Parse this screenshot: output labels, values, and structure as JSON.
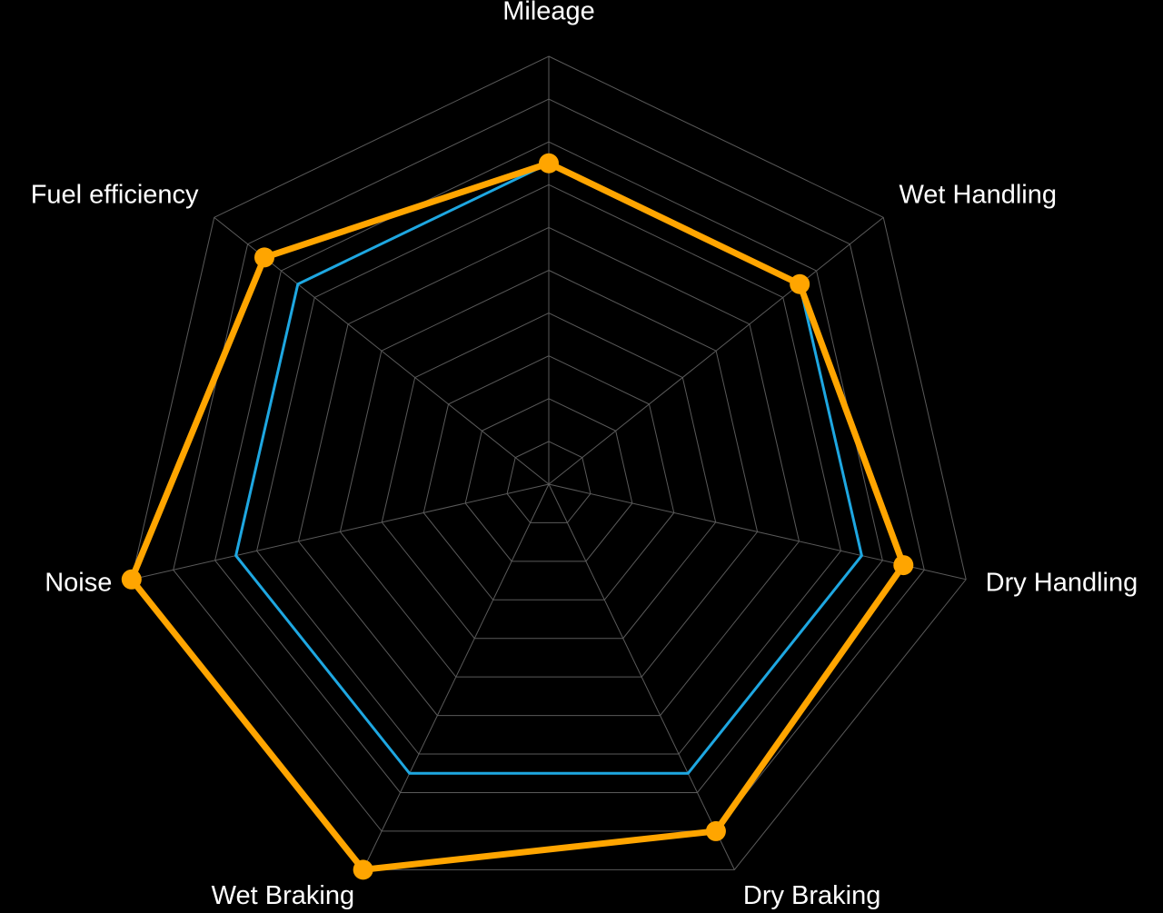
{
  "chart_data": {
    "type": "radar",
    "categories": [
      "Mileage",
      "Wet Handling",
      "Dry Handling",
      "Dry Braking",
      "Wet Braking",
      "Noise",
      "Fuel efficiency"
    ],
    "series": [
      {
        "color": "#1ea7e1",
        "values": [
          7.5,
          7.5,
          7.5,
          7.5,
          7.5,
          7.5,
          7.5
        ]
      },
      {
        "color": "#ffa500",
        "values": [
          7.5,
          7.5,
          8.5,
          9,
          10,
          10,
          8.5
        ],
        "markers": true
      }
    ],
    "ylim": [
      0,
      10
    ],
    "yticks": [
      1,
      2,
      3,
      4,
      5,
      6,
      7,
      8,
      9,
      10
    ],
    "grid": true
  }
}
